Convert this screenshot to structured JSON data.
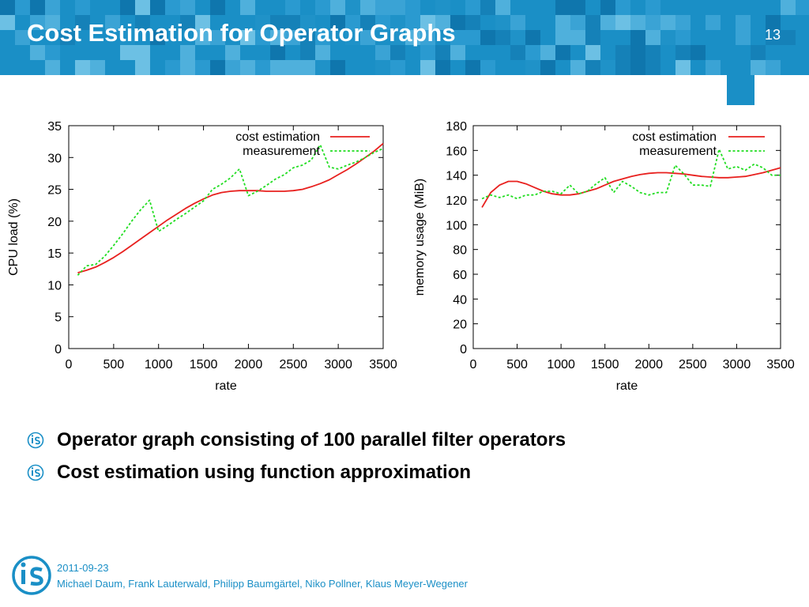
{
  "slide": {
    "title": "Cost Estimation for Operator Graphs",
    "number": "13"
  },
  "colors": {
    "banner": "#1a8fc6",
    "estimation": "#e8201e",
    "measurement": "#22dd22",
    "footer_text": "#1a8fc6"
  },
  "bullets": [
    {
      "text": "Operator graph consisting of 100 parallel filter operators"
    },
    {
      "text": "Cost estimation using function approximation"
    }
  ],
  "footer": {
    "date": "2011-09-23",
    "authors": "Michael Daum, Frank Lauterwald, Philipp Baumgärtel, Niko Pollner, Klaus Meyer-Wegener"
  },
  "chart_data": [
    {
      "type": "line",
      "xlabel": "rate",
      "ylabel": "CPU load (%)",
      "xlim": [
        0,
        3500
      ],
      "ylim": [
        0,
        35
      ],
      "xticks": [
        0,
        500,
        1000,
        1500,
        2000,
        2500,
        3000,
        3500
      ],
      "yticks": [
        0,
        5,
        10,
        15,
        20,
        25,
        30,
        35
      ],
      "grid": false,
      "legend_position": "top-right",
      "series": [
        {
          "name": "cost estimation",
          "style": "solid",
          "color": "#e8201e",
          "x": [
            100,
            200,
            300,
            400,
            500,
            600,
            700,
            800,
            900,
            1000,
            1100,
            1200,
            1300,
            1400,
            1500,
            1600,
            1700,
            1800,
            1900,
            2000,
            2100,
            2200,
            2300,
            2400,
            2500,
            2600,
            2700,
            2800,
            2900,
            3000,
            3100,
            3200,
            3300,
            3400,
            3500
          ],
          "y": [
            11.9,
            12.3,
            12.8,
            13.5,
            14.3,
            15.2,
            16.2,
            17.2,
            18.2,
            19.2,
            20.2,
            21.1,
            22.0,
            22.8,
            23.5,
            24.1,
            24.5,
            24.7,
            24.8,
            24.8,
            24.8,
            24.7,
            24.7,
            24.7,
            24.8,
            25.0,
            25.4,
            25.9,
            26.5,
            27.3,
            28.1,
            29.0,
            30.0,
            31.0,
            32.2
          ]
        },
        {
          "name": "measurement",
          "style": "dotted",
          "color": "#22dd22",
          "x": [
            100,
            200,
            300,
            400,
            500,
            600,
            700,
            800,
            900,
            1000,
            1100,
            1200,
            1300,
            1400,
            1500,
            1600,
            1700,
            1800,
            1900,
            2000,
            2100,
            2200,
            2300,
            2400,
            2500,
            2600,
            2700,
            2800,
            2900,
            3000,
            3100,
            3200,
            3300,
            3400,
            3500
          ],
          "y": [
            11.5,
            13.0,
            13.2,
            14.5,
            16.2,
            18.0,
            20.0,
            21.8,
            23.3,
            18.4,
            19.3,
            20.3,
            21.2,
            22.2,
            23.2,
            25.0,
            25.8,
            26.8,
            28.2,
            24.0,
            24.7,
            25.6,
            26.6,
            27.3,
            28.4,
            28.8,
            29.6,
            32.0,
            28.5,
            28.2,
            28.8,
            29.3,
            30.0,
            30.8,
            31.4
          ]
        }
      ]
    },
    {
      "type": "line",
      "xlabel": "rate",
      "ylabel": "memory usage (MiB)",
      "xlim": [
        0,
        3500
      ],
      "ylim": [
        0,
        180
      ],
      "xticks": [
        0,
        500,
        1000,
        1500,
        2000,
        2500,
        3000,
        3500
      ],
      "yticks": [
        0,
        20,
        40,
        60,
        80,
        100,
        120,
        140,
        160,
        180
      ],
      "grid": false,
      "legend_position": "top-right",
      "series": [
        {
          "name": "cost estimation",
          "style": "solid",
          "color": "#e8201e",
          "x": [
            100,
            200,
            300,
            400,
            500,
            600,
            700,
            800,
            900,
            1000,
            1100,
            1200,
            1300,
            1400,
            1500,
            1600,
            1700,
            1800,
            1900,
            2000,
            2100,
            2200,
            2300,
            2400,
            2500,
            2600,
            2700,
            2800,
            2900,
            3000,
            3100,
            3200,
            3300,
            3400,
            3500
          ],
          "y": [
            114,
            126,
            132,
            135,
            135,
            133,
            130,
            127,
            125,
            124,
            124,
            125,
            127,
            129,
            132,
            135,
            137,
            139,
            140.5,
            141.5,
            142,
            142,
            141.5,
            141,
            140,
            139,
            138.5,
            138,
            138,
            138.5,
            139,
            140.5,
            142,
            144,
            146
          ]
        },
        {
          "name": "measurement",
          "style": "dotted",
          "color": "#22dd22",
          "x": [
            100,
            200,
            300,
            400,
            500,
            600,
            700,
            800,
            900,
            1000,
            1100,
            1200,
            1300,
            1400,
            1500,
            1600,
            1700,
            1800,
            1900,
            2000,
            2100,
            2200,
            2300,
            2400,
            2500,
            2600,
            2700,
            2800,
            2900,
            3000,
            3100,
            3200,
            3300,
            3400,
            3500
          ],
          "y": [
            121,
            124,
            122,
            124,
            121,
            124,
            124,
            127,
            127,
            125,
            132,
            125,
            127,
            133,
            138,
            126,
            135,
            131,
            126,
            124,
            126,
            126,
            148,
            141,
            132,
            132,
            131,
            161,
            145,
            147,
            144,
            149,
            146,
            140,
            140
          ]
        }
      ]
    }
  ]
}
